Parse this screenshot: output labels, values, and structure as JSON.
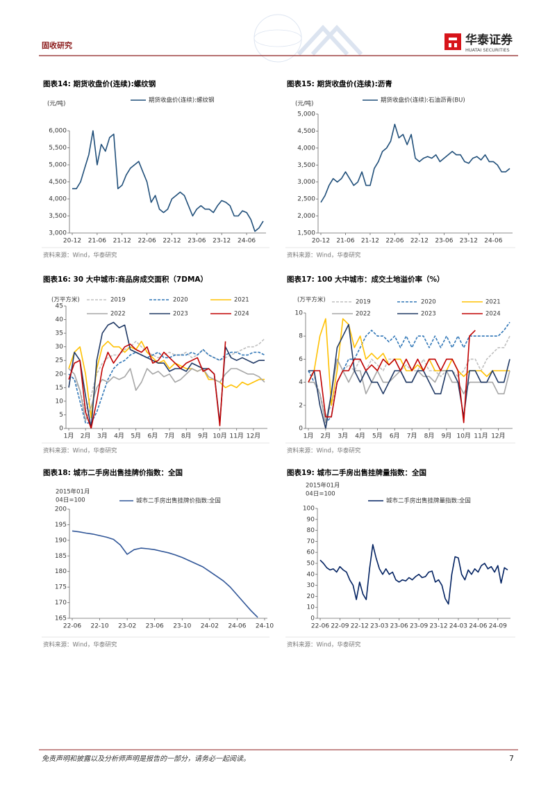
{
  "header": {
    "section": "固收研究",
    "brand": "华泰证券",
    "brand_en": "HUATAI SECURITIES"
  },
  "charts": [
    {
      "type": "line",
      "title": "图表14:  期货收盘价(连续):螺纹钢",
      "unit": [
        "(元/吨)"
      ],
      "source": "资料来源：Wind，华泰研究",
      "categories": [
        "20-12",
        null,
        null,
        null,
        null,
        null,
        "21-06",
        null,
        null,
        null,
        null,
        null,
        "21-12",
        null,
        null,
        null,
        null,
        null,
        "22-06",
        null,
        null,
        null,
        null,
        null,
        "22-12",
        null,
        null,
        null,
        null,
        null,
        "23-06",
        null,
        null,
        null,
        null,
        null,
        "23-12",
        null,
        null,
        null,
        null,
        null,
        "24-06",
        null,
        null,
        null,
        null
      ],
      "ylim": [
        3000,
        6000
      ],
      "yticks": [
        {
          "value": 3000,
          "label": "3,000"
        },
        {
          "value": 3500,
          "label": "3,500"
        },
        {
          "value": 4000,
          "label": "4,000"
        },
        {
          "value": 4500,
          "label": "4,500"
        },
        {
          "value": 5000,
          "label": "5,000"
        },
        {
          "value": 5500,
          "label": "5,500"
        },
        {
          "value": 6000,
          "label": "6,000"
        }
      ],
      "series": [
        {
          "name": "期货收盘价(连续):螺纹钢",
          "color": "#1f4e79",
          "values": [
            4300,
            4300,
            4500,
            4900,
            5300,
            6000,
            5000,
            5600,
            5400,
            5800,
            5900,
            4300,
            4400,
            4700,
            4900,
            5000,
            5100,
            4800,
            4500,
            3900,
            4100,
            3700,
            3600,
            3700,
            4000,
            4100,
            4200,
            4100,
            3800,
            3500,
            3700,
            3800,
            3700,
            3700,
            3600,
            3800,
            3950,
            3900,
            3800,
            3500,
            3500,
            3650,
            3600,
            3400,
            3050,
            3150,
            3350
          ]
        }
      ]
    },
    {
      "type": "line",
      "title": "图表15:  期货收盘价(连续):沥青",
      "unit": [
        "(元/吨)"
      ],
      "source": "资料来源：Wind，华泰研究",
      "categories": [
        "20-12",
        null,
        null,
        null,
        null,
        null,
        "21-06",
        null,
        null,
        null,
        null,
        null,
        "21-12",
        null,
        null,
        null,
        null,
        null,
        "22-06",
        null,
        null,
        null,
        null,
        null,
        "22-12",
        null,
        null,
        null,
        null,
        null,
        "23-06",
        null,
        null,
        null,
        null,
        null,
        "23-12",
        null,
        null,
        null,
        null,
        null,
        "24-06",
        null,
        null,
        null,
        null
      ],
      "ylim": [
        1500,
        5000
      ],
      "yticks": [
        {
          "value": 1500,
          "label": "1,500"
        },
        {
          "value": 2000,
          "label": "2,000"
        },
        {
          "value": 2500,
          "label": "2,500"
        },
        {
          "value": 3000,
          "label": "3,000"
        },
        {
          "value": 3500,
          "label": "3,500"
        },
        {
          "value": 4000,
          "label": "4,000"
        },
        {
          "value": 4500,
          "label": "4,500"
        },
        {
          "value": 5000,
          "label": "5,000"
        }
      ],
      "series": [
        {
          "name": "期货收盘价(连续):石油沥青(BU)",
          "color": "#1f4e79",
          "values": [
            2400,
            2600,
            2900,
            3100,
            3000,
            3100,
            3300,
            3100,
            2900,
            3000,
            3300,
            2900,
            2900,
            3400,
            3600,
            3900,
            4000,
            4200,
            4700,
            4300,
            4400,
            4100,
            4400,
            3700,
            3600,
            3700,
            3750,
            3700,
            3800,
            3600,
            3700,
            3800,
            3900,
            3800,
            3800,
            3600,
            3550,
            3700,
            3750,
            3650,
            3800,
            3600,
            3600,
            3500,
            3300,
            3300,
            3400
          ]
        }
      ]
    },
    {
      "type": "line",
      "title": "图表16:  30 大中城市:商品房成交面积（7DMA）",
      "unit": [
        "(万平方米)"
      ],
      "source": "资料来源：Wind，华泰研究",
      "categories": [
        "1月",
        null,
        null,
        "2月",
        null,
        null,
        "3月",
        null,
        null,
        "4月",
        null,
        null,
        "5月",
        null,
        null,
        "6月",
        null,
        null,
        "7月",
        null,
        null,
        "8月",
        null,
        null,
        "9月",
        null,
        null,
        "10月",
        null,
        null,
        "11月",
        null,
        null,
        "12月",
        null,
        null
      ],
      "ylim": [
        0,
        45
      ],
      "yticks": [
        0,
        5,
        10,
        15,
        20,
        25,
        30,
        35,
        40,
        45
      ],
      "series": [
        {
          "name": "2019",
          "color": "#bfbfbf",
          "dashed": true,
          "values": [
            20,
            18,
            14,
            6,
            12,
            20,
            24,
            26,
            27,
            27,
            29,
            30,
            32,
            30,
            28,
            27,
            26,
            27,
            28,
            27,
            27,
            28,
            26,
            27,
            29,
            27,
            26,
            25,
            26,
            27,
            28,
            29,
            30,
            30,
            31,
            33
          ]
        },
        {
          "name": "2020",
          "color": "#2e75b6",
          "dashed": true,
          "values": [
            20,
            18,
            10,
            2,
            2,
            6,
            12,
            18,
            22,
            24,
            25,
            27,
            28,
            27,
            26,
            27,
            28,
            26,
            26,
            27,
            27,
            27,
            28,
            27,
            29,
            27,
            26,
            25,
            27,
            28,
            28,
            27,
            27,
            28,
            28,
            27
          ]
        },
        {
          "name": "2021",
          "color": "#ffc000",
          "values": [
            22,
            28,
            30,
            20,
            4,
            22,
            30,
            32,
            30,
            30,
            28,
            30,
            29,
            32,
            28,
            26,
            24,
            25,
            22,
            24,
            23,
            22,
            22,
            21,
            22,
            18,
            18,
            17,
            15,
            16,
            15,
            17,
            16,
            17,
            18,
            18
          ]
        },
        {
          "name": "2022",
          "color": "#a6a6a6",
          "values": [
            22,
            20,
            14,
            3,
            8,
            15,
            18,
            17,
            19,
            18,
            19,
            22,
            14,
            17,
            22,
            20,
            21,
            19,
            20,
            17,
            18,
            20,
            22,
            21,
            22,
            19,
            18,
            17,
            20,
            22,
            22,
            21,
            20,
            20,
            19,
            17
          ]
        },
        {
          "name": "2023",
          "color": "#1f3864",
          "values": [
            15,
            28,
            25,
            12,
            0,
            25,
            35,
            38,
            39,
            37,
            38,
            29,
            28,
            27,
            26,
            25,
            24,
            24,
            21,
            22,
            22,
            21,
            24,
            23,
            22,
            22,
            20,
            2,
            30,
            26,
            25,
            26,
            25,
            24,
            25,
            25
          ]
        },
        {
          "name": "2024",
          "color": "#c00000",
          "values": [
            18,
            24,
            25,
            6,
            0,
            10,
            22,
            28,
            24,
            27,
            30,
            31,
            29,
            28,
            30,
            24,
            25,
            28,
            26,
            24,
            22,
            24,
            25,
            26,
            21,
            22,
            20,
            1,
            32,
            null,
            null,
            null,
            null,
            null,
            null,
            null
          ]
        }
      ]
    },
    {
      "type": "line",
      "title": "图表17:  100 大中城市：成交土地溢价率（%）",
      "unit": [
        "(万平方米)"
      ],
      "source": "资料来源：Wind，华泰研究",
      "categories": [
        "1月",
        null,
        null,
        "2月",
        null,
        null,
        "3月",
        null,
        null,
        "4月",
        null,
        null,
        "5月",
        null,
        null,
        "6月",
        null,
        null,
        "7月",
        null,
        null,
        "8月",
        null,
        null,
        "9月",
        null,
        null,
        "10月",
        null,
        null,
        "11月",
        null,
        null,
        "12月",
        null,
        null
      ],
      "ylim": [
        0,
        10
      ],
      "yticks": [
        0,
        2,
        4,
        6,
        8,
        10
      ],
      "series": [
        {
          "name": "2019",
          "color": "#bfbfbf",
          "dashed": true,
          "values": [
            5,
            4.5,
            3,
            1,
            2,
            4,
            5,
            5.5,
            5,
            6,
            5,
            6,
            5.5,
            5,
            6,
            6,
            5,
            5.5,
            5,
            5,
            6,
            5,
            5,
            4.5,
            5,
            5,
            4.5,
            5,
            6,
            6,
            5,
            6,
            6.5,
            7,
            7,
            8
          ]
        },
        {
          "name": "2020",
          "color": "#2e75b6",
          "dashed": true,
          "values": [
            5,
            4,
            3,
            0.5,
            1,
            4,
            5,
            6,
            6,
            7,
            8,
            8.5,
            8,
            8,
            7.5,
            8,
            7,
            8,
            7,
            8,
            8,
            7,
            8,
            7,
            8,
            7,
            8,
            7,
            8,
            8,
            8,
            8,
            8,
            8,
            8.5,
            9.2
          ]
        },
        {
          "name": "2021",
          "color": "#ffc000",
          "values": [
            4,
            5,
            8,
            9.5,
            2,
            5,
            9.5,
            9,
            7,
            8,
            6,
            6.5,
            6,
            6.5,
            5.5,
            6,
            6,
            5,
            5,
            5.5,
            5,
            6,
            5,
            5,
            5,
            6,
            5,
            4.5,
            5,
            5,
            5,
            4.5,
            5,
            5,
            5,
            5
          ]
        },
        {
          "name": "2022",
          "color": "#a6a6a6",
          "values": [
            4,
            4,
            3,
            0.5,
            3,
            6,
            5,
            4,
            5,
            5,
            3,
            4,
            5,
            4,
            4,
            4.5,
            5,
            4,
            4,
            5,
            4.5,
            4.5,
            4,
            5,
            5,
            4,
            4,
            3,
            4,
            4,
            4,
            4,
            4,
            3,
            3,
            5
          ]
        },
        {
          "name": "2023",
          "color": "#1f3864",
          "values": [
            5,
            5,
            2,
            0,
            3,
            7,
            8,
            9,
            5,
            4,
            5,
            4,
            4,
            3,
            4,
            5,
            5,
            4,
            4,
            5,
            5,
            4,
            3,
            3,
            5,
            5,
            4,
            1,
            5,
            5,
            4,
            4,
            5,
            4,
            4,
            6
          ]
        },
        {
          "name": "2024",
          "color": "#c00000",
          "values": [
            4,
            5,
            5,
            1,
            1,
            4,
            5,
            5,
            6,
            6,
            5,
            5.5,
            5,
            6,
            5.5,
            6,
            5,
            6,
            5,
            6,
            5,
            6,
            6,
            5,
            6,
            6,
            5,
            0.5,
            8,
            8.5,
            null,
            null,
            null,
            null,
            null,
            null
          ]
        }
      ]
    },
    {
      "type": "line",
      "title": "图表18:  城市二手房出售挂牌价指数：全国",
      "unit": [
        "2015年01月",
        "04日=100"
      ],
      "source": "资料来源：Wind，华泰研究",
      "categories": [
        "22-06",
        null,
        null,
        null,
        "22-10",
        null,
        null,
        null,
        "23-02",
        null,
        null,
        null,
        "23-06",
        null,
        null,
        null,
        "23-10",
        null,
        null,
        null,
        "24-02",
        null,
        null,
        null,
        "24-06",
        null,
        null,
        null,
        "24-10"
      ],
      "ylim": [
        165,
        200
      ],
      "yticks": [
        165,
        170,
        175,
        180,
        185,
        190,
        195,
        200
      ],
      "series": [
        {
          "name": "城市二手房出售挂牌价指数:全国",
          "color": "#2f5597",
          "values": [
            193,
            192.7,
            192.3,
            192,
            191.5,
            191,
            190.3,
            188.5,
            185.5,
            187,
            187.5,
            187.3,
            187,
            186.5,
            186,
            185.3,
            184.5,
            183.5,
            182.5,
            181.5,
            180,
            178.5,
            177,
            175,
            172.5,
            170,
            167.5,
            165.3,
            null
          ]
        }
      ]
    },
    {
      "type": "line",
      "title": "图表19:  城市二手房出售挂牌量指数：全国",
      "unit": [
        "2015年01月",
        "04日=100"
      ],
      "source": "资料来源：Wind，华泰研究",
      "categories": [
        "22-06",
        null,
        null,
        null,
        null,
        null,
        "22-09",
        null,
        null,
        null,
        null,
        null,
        "22-12",
        null,
        null,
        null,
        null,
        null,
        "23-03",
        null,
        null,
        null,
        null,
        null,
        "23-06",
        null,
        null,
        null,
        null,
        null,
        "23-09",
        null,
        null,
        null,
        null,
        null,
        "23-12",
        null,
        null,
        null,
        null,
        null,
        "24-03",
        null,
        null,
        null,
        null,
        null,
        "24-06",
        null,
        null,
        null,
        null,
        null,
        "24-09",
        null,
        null,
        null
      ],
      "ylim": [
        0,
        100
      ],
      "yticks": [
        0,
        10,
        20,
        30,
        40,
        50,
        60,
        70,
        80,
        90,
        100
      ],
      "series": [
        {
          "name": "城市二手房出售挂牌量指数:全国",
          "color": "#002060",
          "values": [
            53,
            50,
            46,
            44,
            45,
            42,
            47,
            44,
            42,
            35,
            30,
            17,
            33,
            22,
            17,
            45,
            67,
            55,
            45,
            40,
            45,
            40,
            42,
            35,
            33,
            35,
            34,
            37,
            35,
            38,
            40,
            37,
            38,
            42,
            43,
            33,
            35,
            30,
            18,
            13,
            40,
            56,
            55,
            40,
            35,
            44,
            40,
            45,
            42,
            48,
            50,
            45,
            47,
            42,
            48,
            32,
            46,
            44
          ]
        }
      ]
    }
  ],
  "footer": {
    "disclaimer": "免责声明和披露以及分析师声明是报告的一部分，请务必一起阅读。",
    "page": "7"
  }
}
